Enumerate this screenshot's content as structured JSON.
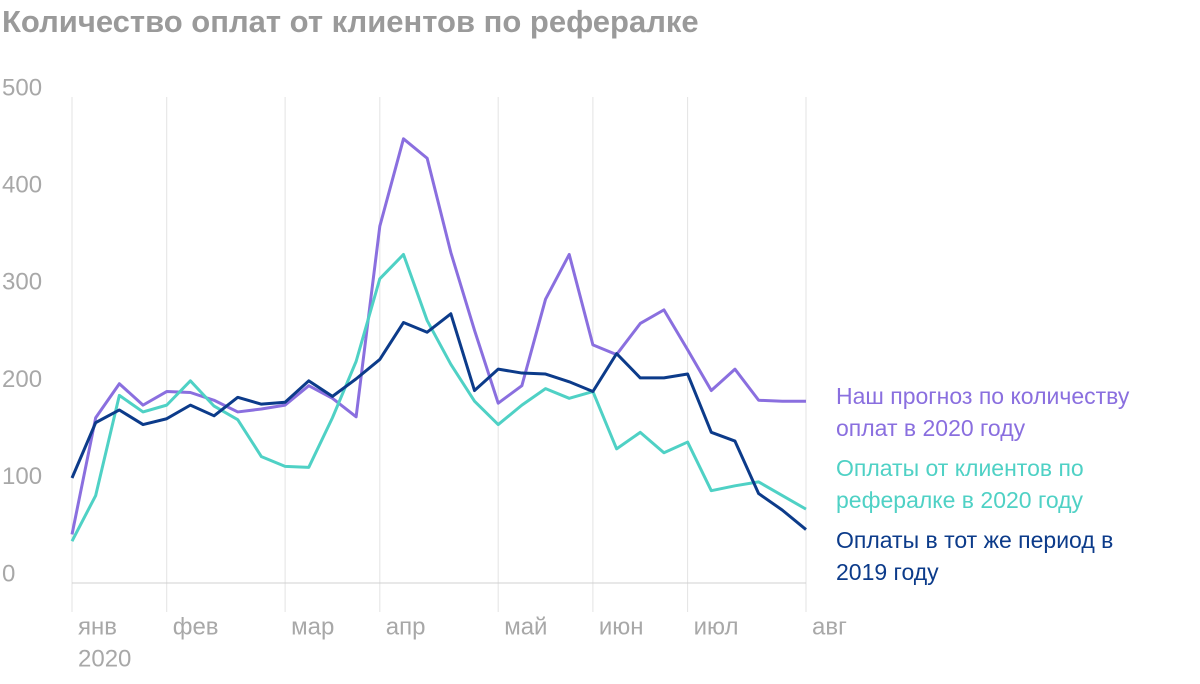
{
  "chart_data": {
    "type": "line",
    "title": "Количество оплат от клиентов по рефералке",
    "categories": [
      "янв",
      null,
      null,
      null,
      "фев",
      null,
      null,
      null,
      null,
      "мар",
      null,
      null,
      null,
      "апр",
      null,
      null,
      null,
      null,
      "май",
      null,
      null,
      null,
      "июн",
      null,
      null,
      null,
      "июл",
      null,
      null,
      null,
      null,
      "авг"
    ],
    "year_label": "2020",
    "series": [
      {
        "name": "Наш прогноз по количеству оплат в 2020 году",
        "color": "#8a6fdf",
        "values": [
          50,
          170,
          205,
          183,
          197,
          196,
          188,
          176,
          179,
          183,
          203,
          190,
          171,
          367,
          457,
          437,
          340,
          260,
          185,
          203,
          292,
          338,
          245,
          235,
          267,
          281,
          240,
          198,
          220,
          188,
          187,
          187
        ]
      },
      {
        "name": "Оплаты от клиентов по рефералке в 2020 году",
        "color": "#4fd1c5",
        "values": [
          43,
          90,
          193,
          176,
          183,
          208,
          182,
          168,
          130,
          120,
          119,
          170,
          228,
          313,
          338,
          270,
          225,
          187,
          163,
          183,
          200,
          190,
          197,
          138,
          155,
          134,
          145,
          95,
          100,
          104,
          90,
          76
        ]
      },
      {
        "name": "Оплаты в тот же период в 2019 году",
        "color": "#0c3b8a",
        "values": [
          108,
          165,
          178,
          163,
          169,
          183,
          172,
          191,
          184,
          186,
          208,
          192,
          210,
          230,
          268,
          258,
          277,
          198,
          220,
          216,
          215,
          207,
          197,
          236,
          211,
          211,
          215,
          155,
          146,
          92,
          75,
          55
        ]
      }
    ],
    "ylim": [
      0,
      500
    ],
    "yticks": [
      0,
      100,
      200,
      300,
      400,
      500
    ]
  }
}
